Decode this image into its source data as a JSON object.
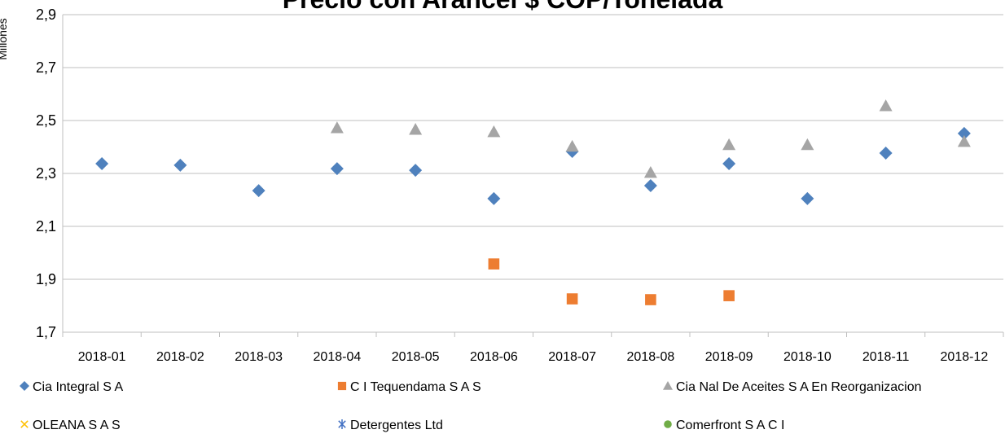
{
  "chart_data": {
    "type": "scatter",
    "title": "Precio con Arancel $ COP/Tonelada",
    "y_label": "Millones",
    "categories": [
      "2018-01",
      "2018-02",
      "2018-03",
      "2018-04",
      "2018-05",
      "2018-06",
      "2018-07",
      "2018-08",
      "2018-09",
      "2018-10",
      "2018-11",
      "2018-12"
    ],
    "ylim": [
      1.7,
      2.9
    ],
    "yticks": [
      {
        "value": 1.7,
        "label": "1,7"
      },
      {
        "value": 1.9,
        "label": "1,9"
      },
      {
        "value": 2.1,
        "label": "2,1"
      },
      {
        "value": 2.3,
        "label": "2,3"
      },
      {
        "value": 2.5,
        "label": "2,5"
      },
      {
        "value": 2.7,
        "label": "2,7"
      },
      {
        "value": 2.9,
        "label": "2,9"
      }
    ],
    "grid": true,
    "legend": "bottom",
    "series": [
      {
        "name": "Cia Integral S A",
        "color": "#4f81bd",
        "marker": "diamond",
        "values": [
          2.337,
          2.331,
          2.235,
          2.318,
          2.312,
          2.205,
          2.383,
          2.254,
          2.337,
          2.205,
          2.377,
          2.451
        ]
      },
      {
        "name": "C I Tequendama S A S",
        "color": "#ed7d31",
        "marker": "square",
        "values": [
          null,
          null,
          null,
          null,
          null,
          1.958,
          1.826,
          1.823,
          1.838,
          null,
          null,
          null
        ]
      },
      {
        "name": "Cia Nal De Aceites S A En Reorganizacion",
        "color": "#a5a5a5",
        "marker": "triangle",
        "values": [
          null,
          null,
          null,
          2.472,
          2.466,
          2.457,
          2.402,
          2.303,
          2.408,
          2.408,
          2.555,
          2.42
        ]
      },
      {
        "name": "OLEANA S A S",
        "color": "#ffc000",
        "marker": "x",
        "values": [
          null,
          null,
          null,
          null,
          null,
          null,
          null,
          null,
          null,
          null,
          null,
          null
        ]
      },
      {
        "name": "Detergentes Ltd",
        "color": "#4472c4",
        "marker": "star",
        "values": [
          null,
          null,
          null,
          null,
          null,
          null,
          null,
          null,
          null,
          null,
          null,
          null
        ]
      },
      {
        "name": "Comerfront S A C I",
        "color": "#70ad47",
        "marker": "circle",
        "values": [
          null,
          null,
          null,
          null,
          null,
          null,
          null,
          null,
          null,
          null,
          null,
          null
        ]
      }
    ]
  }
}
